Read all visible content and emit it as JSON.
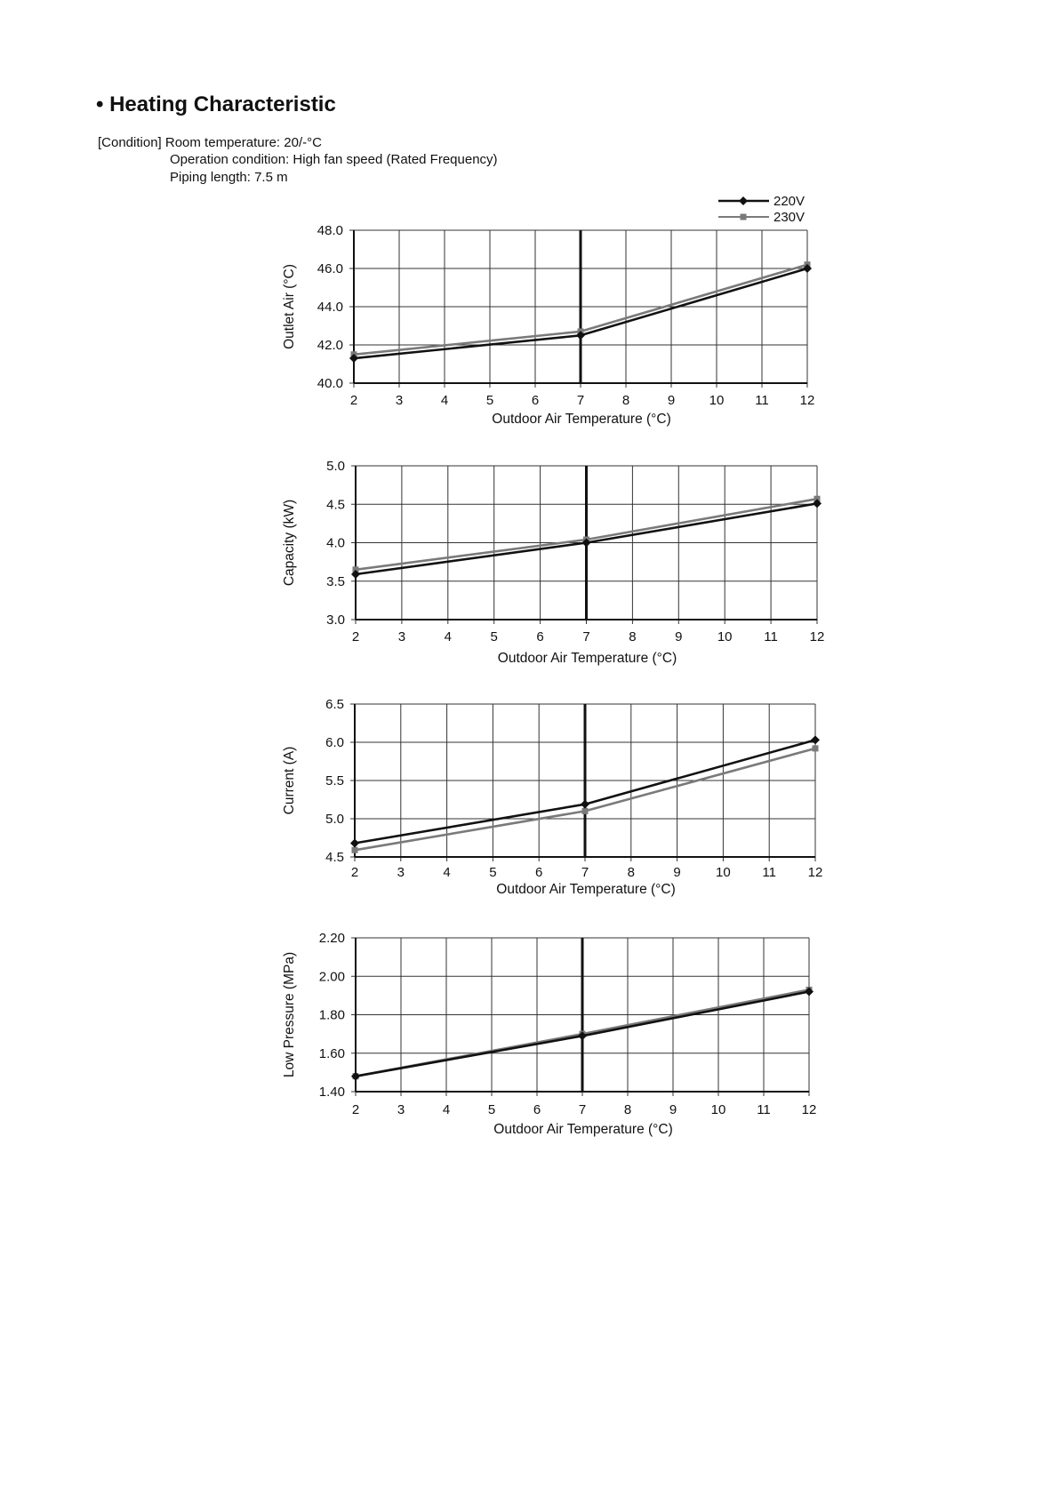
{
  "heading": "• Heating Characteristic",
  "conditions": [
    "[Condition] Room temperature: 20/-°C",
    "Operation condition: High fan speed (Rated Frequency)",
    "Piping length: 7.5 m"
  ],
  "legend": [
    {
      "name": "220V",
      "color": "#111111",
      "marker": "diamond"
    },
    {
      "name": "230V",
      "color": "#7a7a7a",
      "marker": "square"
    }
  ],
  "chart_data": [
    {
      "type": "line",
      "xlabel": "Outdoor  Air Temperature (°C)",
      "ylabel": "Outlet Air (°C)",
      "x_ticks": [
        "2",
        "3",
        "4",
        "5",
        "6",
        "7",
        "8",
        "9",
        "10",
        "11",
        "12"
      ],
      "xlim": [
        2,
        12
      ],
      "ylim": [
        40.0,
        48.0
      ],
      "y_ticks": [
        "48.0",
        "46.0",
        "44.0",
        "42.0",
        "40.0"
      ],
      "reference_line_x": 7,
      "grid": true,
      "series": [
        {
          "name": "220V",
          "x": [
            2,
            7,
            12
          ],
          "y": [
            41.3,
            42.5,
            46.0
          ]
        },
        {
          "name": "230V",
          "x": [
            2,
            7,
            12
          ],
          "y": [
            41.5,
            42.7,
            46.2
          ]
        }
      ]
    },
    {
      "type": "line",
      "xlabel": "Outdoor  Air Temperature (°C)",
      "ylabel": "Capacity (kW)",
      "x_ticks": [
        "2",
        "3",
        "4",
        "5",
        "6",
        "7",
        "8",
        "9",
        "10",
        "11",
        "12"
      ],
      "xlim": [
        2,
        12
      ],
      "ylim": [
        3.0,
        5.0
      ],
      "y_ticks": [
        "5.0",
        "4.5",
        "4.0",
        "3.5",
        "3.0"
      ],
      "reference_line_x": 7,
      "grid": true,
      "series": [
        {
          "name": "220V",
          "x": [
            2,
            7,
            12
          ],
          "y": [
            3.59,
            4.0,
            4.51
          ]
        },
        {
          "name": "230V",
          "x": [
            2,
            7,
            12
          ],
          "y": [
            3.65,
            4.04,
            4.57
          ]
        }
      ]
    },
    {
      "type": "line",
      "xlabel": "Outdoor  Air Temperature (°C)",
      "ylabel": "Current (A)",
      "x_ticks": [
        "2",
        "3",
        "4",
        "5",
        "6",
        "7",
        "8",
        "9",
        "10",
        "11",
        "12"
      ],
      "xlim": [
        2,
        12
      ],
      "ylim": [
        4.5,
        6.5
      ],
      "y_ticks": [
        "6.5",
        "6.0",
        "5.5",
        "5.0",
        "4.5"
      ],
      "reference_line_x": 7,
      "grid": true,
      "series": [
        {
          "name": "220V",
          "x": [
            2,
            7,
            12
          ],
          "y": [
            4.68,
            5.19,
            6.03
          ]
        },
        {
          "name": "230V",
          "x": [
            2,
            7,
            12
          ],
          "y": [
            4.59,
            5.1,
            5.92
          ]
        }
      ]
    },
    {
      "type": "line",
      "xlabel": "Outdoor  Air Temperature (°C)",
      "ylabel": "Low Pressure (MPa)",
      "x_ticks": [
        "2",
        "3",
        "4",
        "5",
        "6",
        "7",
        "8",
        "9",
        "10",
        "11",
        "12"
      ],
      "xlim": [
        2,
        12
      ],
      "ylim": [
        1.4,
        2.2
      ],
      "y_ticks": [
        "2.20",
        "2.00",
        "1.80",
        "1.60",
        "1.40"
      ],
      "reference_line_x": 7,
      "grid": true,
      "series": [
        {
          "name": "220V",
          "x": [
            2,
            7,
            12
          ],
          "y": [
            1.48,
            1.69,
            1.92
          ]
        },
        {
          "name": "230V",
          "x": [
            2,
            7,
            12
          ],
          "y": [
            1.48,
            1.7,
            1.93
          ]
        }
      ]
    }
  ]
}
